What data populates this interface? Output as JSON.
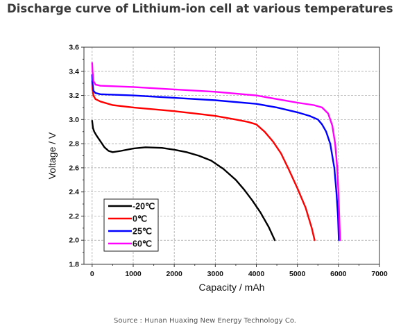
{
  "page": {
    "title": "Discharge curve of Lithium-ion cell at various temperatures",
    "source": "Source : Hunan Huaxing New Energy Technology Co."
  },
  "chart_data": {
    "type": "line",
    "title": "",
    "xlabel": "Capacity / mAh",
    "ylabel": "Voltage / V",
    "xlim": [
      -200,
      7000
    ],
    "ylim": [
      1.8,
      3.6
    ],
    "xticks": [
      0,
      1000,
      2000,
      3000,
      4000,
      5000,
      6000,
      7000
    ],
    "yticks": [
      1.8,
      2.0,
      2.2,
      2.4,
      2.6,
      2.8,
      3.0,
      3.2,
      3.4,
      3.6
    ],
    "xtick_labels": [
      "0",
      "1000",
      "2000",
      "3000",
      "4000",
      "5000",
      "6000",
      "7000"
    ],
    "ytick_labels": [
      "1.8",
      "2.0",
      "2.2",
      "2.4",
      "2.6",
      "2.8",
      "3.0",
      "3.2",
      "3.4",
      "3.6"
    ],
    "grid": true,
    "legend_position": "bottom-left",
    "series": [
      {
        "name": "-20℃",
        "color": "#000000",
        "points": [
          [
            0,
            2.99
          ],
          [
            10,
            2.96
          ],
          [
            20,
            2.93
          ],
          [
            50,
            2.9
          ],
          [
            100,
            2.87
          ],
          [
            200,
            2.82
          ],
          [
            300,
            2.77
          ],
          [
            400,
            2.74
          ],
          [
            500,
            2.73
          ],
          [
            700,
            2.74
          ],
          [
            1000,
            2.76
          ],
          [
            1300,
            2.77
          ],
          [
            1700,
            2.765
          ],
          [
            2000,
            2.75
          ],
          [
            2300,
            2.73
          ],
          [
            2600,
            2.7
          ],
          [
            2900,
            2.66
          ],
          [
            3200,
            2.59
          ],
          [
            3500,
            2.5
          ],
          [
            3700,
            2.42
          ],
          [
            3900,
            2.33
          ],
          [
            4100,
            2.23
          ],
          [
            4300,
            2.11
          ],
          [
            4450,
            2.0
          ]
        ]
      },
      {
        "name": "0℃",
        "color": "#ff0000",
        "points": [
          [
            0,
            3.32
          ],
          [
            10,
            3.25
          ],
          [
            30,
            3.2
          ],
          [
            80,
            3.17
          ],
          [
            200,
            3.15
          ],
          [
            500,
            3.12
          ],
          [
            1000,
            3.1
          ],
          [
            1500,
            3.085
          ],
          [
            2000,
            3.07
          ],
          [
            2500,
            3.05
          ],
          [
            3000,
            3.03
          ],
          [
            3500,
            3.0
          ],
          [
            3800,
            2.98
          ],
          [
            4000,
            2.96
          ],
          [
            4200,
            2.9
          ],
          [
            4400,
            2.82
          ],
          [
            4600,
            2.72
          ],
          [
            4800,
            2.58
          ],
          [
            5000,
            2.43
          ],
          [
            5200,
            2.27
          ],
          [
            5350,
            2.1
          ],
          [
            5420,
            2.0
          ]
        ]
      },
      {
        "name": "25℃",
        "color": "#0000ff",
        "points": [
          [
            0,
            3.37
          ],
          [
            10,
            3.3
          ],
          [
            30,
            3.24
          ],
          [
            80,
            3.22
          ],
          [
            200,
            3.21
          ],
          [
            1000,
            3.2
          ],
          [
            2000,
            3.18
          ],
          [
            3000,
            3.16
          ],
          [
            4000,
            3.13
          ],
          [
            4500,
            3.1
          ],
          [
            5000,
            3.06
          ],
          [
            5300,
            3.03
          ],
          [
            5500,
            3.0
          ],
          [
            5600,
            2.96
          ],
          [
            5700,
            2.9
          ],
          [
            5800,
            2.8
          ],
          [
            5900,
            2.6
          ],
          [
            5950,
            2.4
          ],
          [
            5990,
            2.2
          ],
          [
            6010,
            2.0
          ]
        ]
      },
      {
        "name": "60℃",
        "color": "#ff00ff",
        "points": [
          [
            0,
            3.47
          ],
          [
            10,
            3.4
          ],
          [
            30,
            3.32
          ],
          [
            80,
            3.29
          ],
          [
            200,
            3.28
          ],
          [
            1000,
            3.27
          ],
          [
            2000,
            3.25
          ],
          [
            3000,
            3.23
          ],
          [
            4000,
            3.2
          ],
          [
            4500,
            3.17
          ],
          [
            5000,
            3.14
          ],
          [
            5400,
            3.12
          ],
          [
            5600,
            3.1
          ],
          [
            5750,
            3.05
          ],
          [
            5850,
            2.95
          ],
          [
            5920,
            2.8
          ],
          [
            5970,
            2.6
          ],
          [
            6000,
            2.4
          ],
          [
            6020,
            2.2
          ],
          [
            6040,
            2.0
          ]
        ]
      }
    ]
  }
}
